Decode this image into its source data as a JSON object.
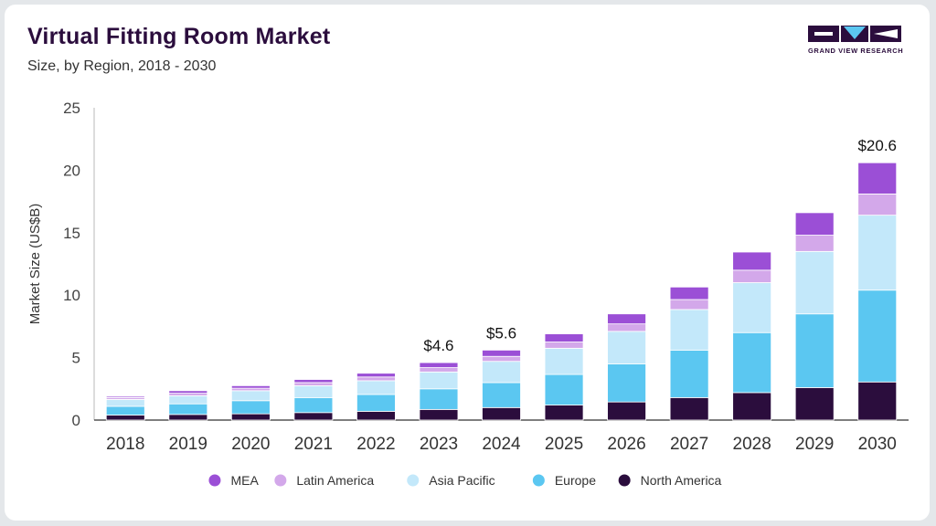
{
  "header": {
    "title": "Virtual Fitting Room Market",
    "subtitle": "Size, by Region, 2018 - 2030"
  },
  "logo": {
    "text": "GRAND VIEW RESEARCH"
  },
  "chart_data": {
    "type": "bar",
    "stacked": true,
    "ylabel": "Market Size (US$B)",
    "ylim": [
      0,
      25
    ],
    "yticks": [
      0,
      5,
      10,
      15,
      20,
      25
    ],
    "grid": false,
    "legend_position": "bottom",
    "categories": [
      "2018",
      "2019",
      "2020",
      "2021",
      "2022",
      "2023",
      "2024",
      "2025",
      "2026",
      "2027",
      "2028",
      "2029",
      "2030"
    ],
    "series": [
      {
        "name": "North America",
        "color": "#2b0d3d",
        "values": [
          0.4,
          0.45,
          0.5,
          0.6,
          0.7,
          0.85,
          1.0,
          1.2,
          1.45,
          1.8,
          2.2,
          2.6,
          3.05
        ]
      },
      {
        "name": "Europe",
        "color": "#5bc7f1",
        "values": [
          0.7,
          0.85,
          1.05,
          1.2,
          1.35,
          1.65,
          2.0,
          2.45,
          3.05,
          3.8,
          4.8,
          5.9,
          7.35
        ]
      },
      {
        "name": "Asia Pacific",
        "color": "#c3e8fa",
        "values": [
          0.55,
          0.65,
          0.8,
          0.95,
          1.1,
          1.35,
          1.7,
          2.1,
          2.6,
          3.25,
          4.0,
          5.0,
          6.0
        ]
      },
      {
        "name": "Latin America",
        "color": "#d3a8ea",
        "values": [
          0.15,
          0.2,
          0.2,
          0.25,
          0.3,
          0.35,
          0.4,
          0.5,
          0.6,
          0.8,
          1.0,
          1.3,
          1.7
        ]
      },
      {
        "name": "MEA",
        "color": "#9b4fd6",
        "values": [
          0.1,
          0.2,
          0.2,
          0.25,
          0.3,
          0.4,
          0.5,
          0.65,
          0.8,
          1.0,
          1.45,
          1.8,
          2.5
        ]
      }
    ],
    "annotations": [
      {
        "category": "2023",
        "label": "$4.6"
      },
      {
        "category": "2024",
        "label": "$5.6"
      },
      {
        "category": "2030",
        "label": "$20.6"
      }
    ]
  }
}
